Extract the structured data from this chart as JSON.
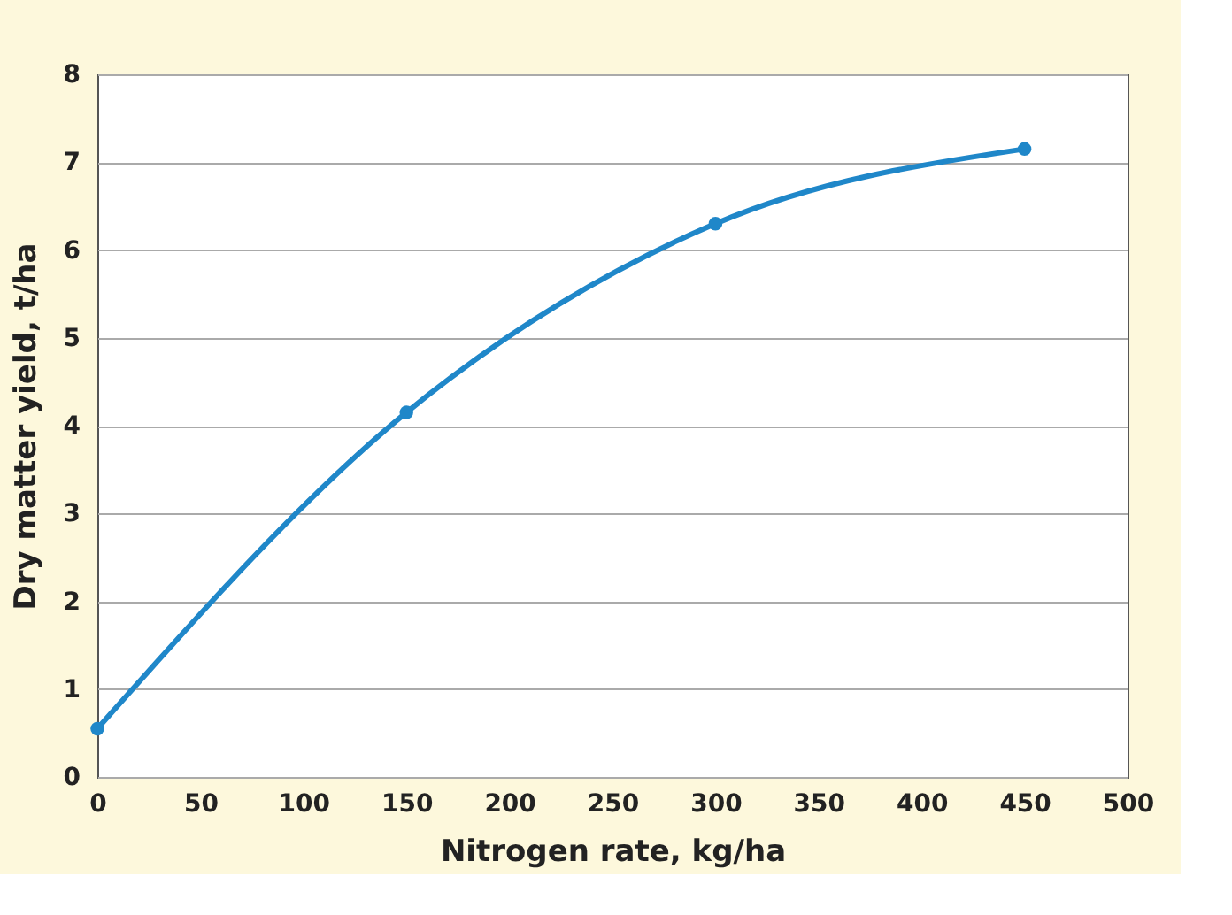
{
  "chart_data": {
    "type": "line",
    "xlabel": "Nitrogen rate, kg/ha",
    "ylabel": "Dry matter yield, t/ha",
    "series": [
      {
        "color": "#1f87c9",
        "x": [
          0,
          150,
          300,
          450
        ],
        "values": [
          0.55,
          4.15,
          6.3,
          7.15
        ]
      }
    ],
    "xlim": [
      0,
      500
    ],
    "xticks": [
      0,
      50,
      100,
      150,
      200,
      250,
      300,
      350,
      400,
      450,
      500
    ],
    "ylim": [
      0,
      8
    ],
    "yticks": [
      0,
      1,
      2,
      3,
      4,
      5,
      6,
      7,
      8
    ],
    "grid": "y",
    "marker": "circle",
    "line_style": "solid"
  }
}
